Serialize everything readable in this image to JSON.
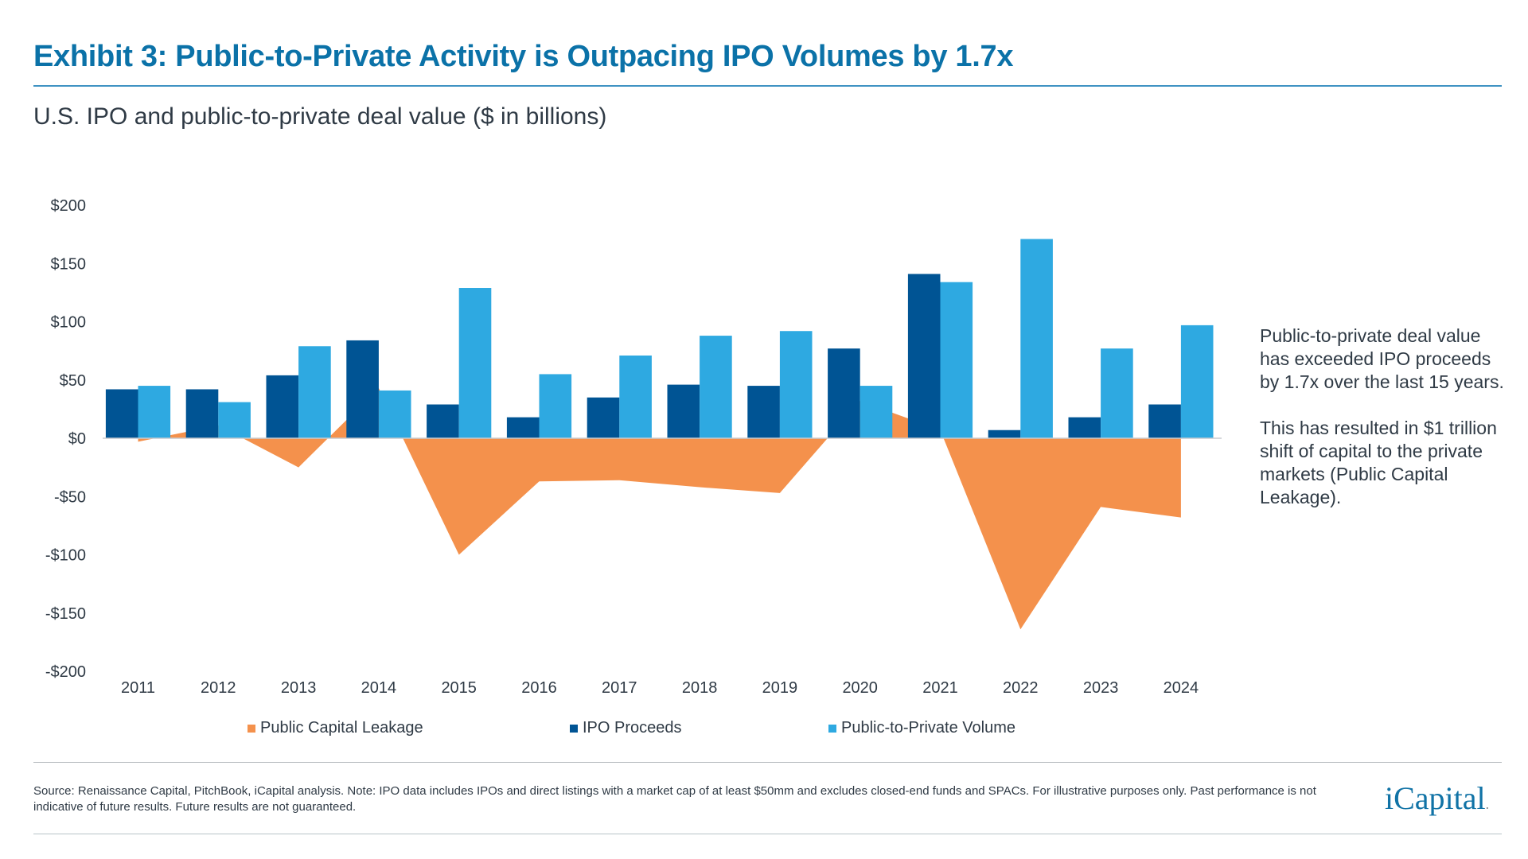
{
  "header": {
    "title": "Exhibit 3: Public-to-Private Activity is Outpacing IPO Volumes by 1.7x",
    "subtitle": "U.S. IPO and public-to-private deal value ($ in billions)"
  },
  "chart_data": {
    "type": "bar",
    "categories": [
      "2011",
      "2012",
      "2013",
      "2014",
      "2015",
      "2016",
      "2017",
      "2018",
      "2019",
      "2020",
      "2021",
      "2022",
      "2023",
      "2024"
    ],
    "series": [
      {
        "name": "Public Capital Leakage",
        "kind": "area",
        "color": "#f4914c",
        "values": [
          -3,
          11,
          -25,
          43,
          -100,
          -37,
          -36,
          -42,
          -47,
          32,
          7,
          -164,
          -59,
          -68
        ]
      },
      {
        "name": "IPO Proceeds",
        "kind": "bar",
        "color": "#005494",
        "values": [
          42,
          42,
          54,
          84,
          29,
          18,
          35,
          46,
          45,
          77,
          141,
          7,
          18,
          29
        ]
      },
      {
        "name": "Public-to-Private Volume",
        "kind": "bar",
        "color": "#2ea9e1",
        "values": [
          45,
          31,
          79,
          41,
          129,
          55,
          71,
          88,
          92,
          45,
          134,
          171,
          77,
          97
        ]
      }
    ],
    "ylim": [
      -200,
      200
    ],
    "yticks": [
      200,
      150,
      100,
      50,
      0,
      -50,
      -100,
      -150,
      -200
    ],
    "ytick_labels": [
      "$200",
      "$150",
      "$100",
      "$50",
      "$0",
      "-$50",
      "-$100",
      "-$150",
      "-$200"
    ],
    "grid": false,
    "legend_position": "bottom"
  },
  "legend": [
    "Public Capital Leakage",
    "IPO Proceeds",
    "Public-to-Private Volume"
  ],
  "note": {
    "p1": "Public-to-private deal value has exceeded IPO proceeds by 1.7x over the last 15 years.",
    "p2": "This has resulted in $1 trillion shift of capital to the private markets (Public Capital Leakage)."
  },
  "footer": {
    "source": "Source: Renaissance Capital, PitchBook, iCapital analysis. Note: IPO data includes IPOs and direct listings with a market cap of at least $50mm and excludes closed-end funds and SPACs. For illustrative purposes only. Past performance is not indicative of future results. Future results are not guaranteed.",
    "logo_text": "iCapital"
  }
}
